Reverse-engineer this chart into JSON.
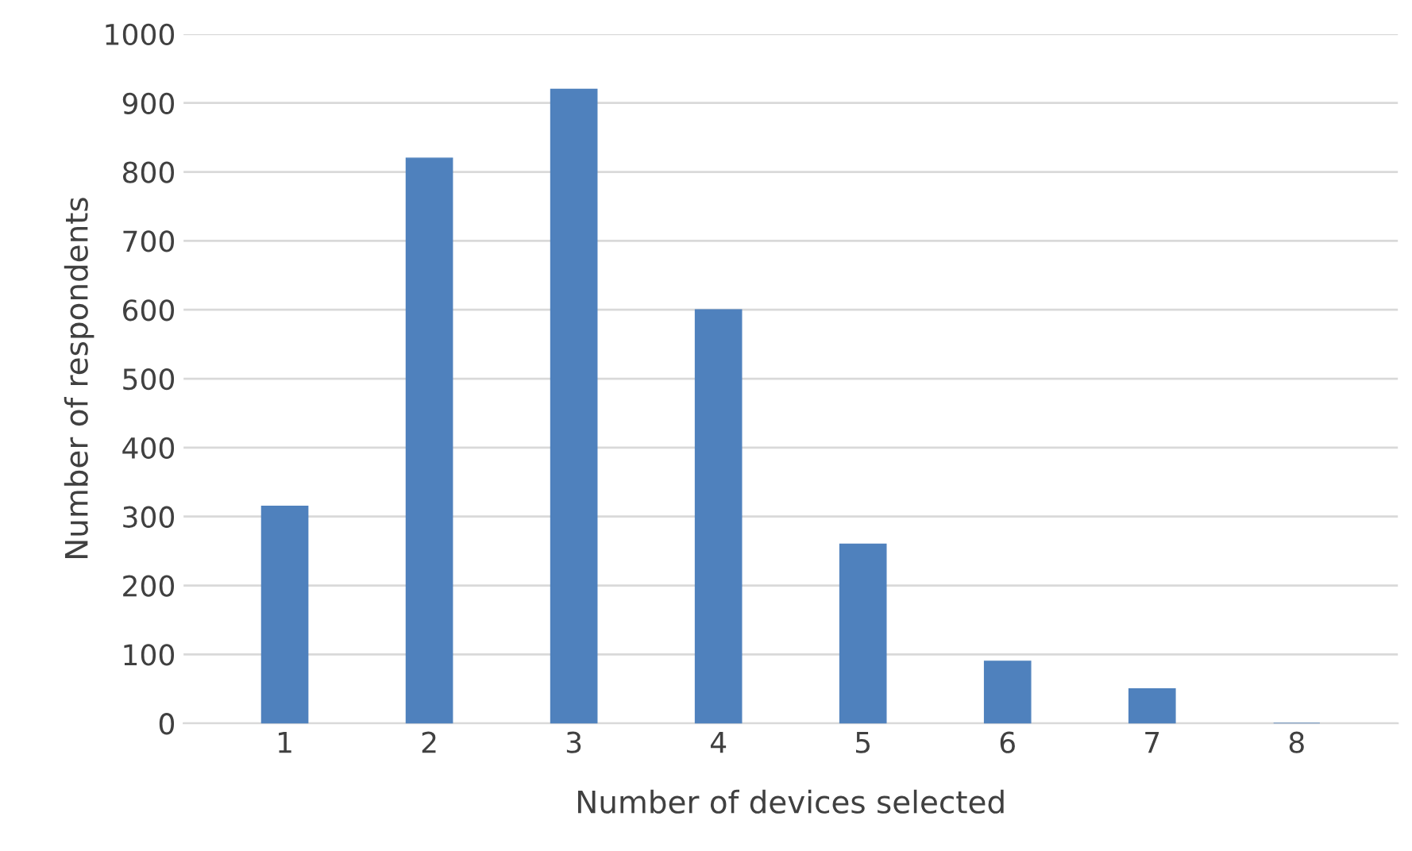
{
  "chart_data": {
    "type": "bar",
    "xlabel": "Number of devices selected",
    "ylabel": "Number of respondents",
    "categories": [
      "1",
      "2",
      "3",
      "4",
      "5",
      "6",
      "7",
      "8"
    ],
    "values": [
      315,
      820,
      920,
      600,
      260,
      90,
      50,
      0
    ],
    "color": "#4f81bd",
    "ylim": [
      0,
      1000
    ],
    "yticks": [
      0,
      100,
      200,
      300,
      400,
      500,
      600,
      700,
      800,
      900,
      1000
    ],
    "grid": "y"
  }
}
